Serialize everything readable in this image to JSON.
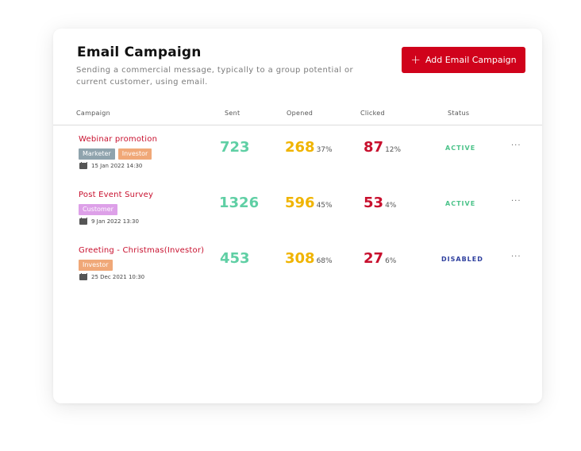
{
  "header": {
    "title": "Email Campaign",
    "subtitle": "Sending a commercial message, typically to a group potential or current customer, using email.",
    "add_button_label": "Add Email Campaign",
    "add_button_icon": "plus-icon"
  },
  "columns": [
    "Campaign",
    "Sent",
    "Opened",
    "Clicked",
    "Status"
  ],
  "colors": {
    "accent": "#d0021b",
    "sent": "#5fcfa4",
    "opened": "#f0b400",
    "clicked": "#c8102e",
    "active": "#4cc38a",
    "disabled": "#2e3f9e",
    "tag_marketer": "#8fa3ad",
    "tag_investor": "#f0a878",
    "tag_customer": "#dda0e8"
  },
  "rows": [
    {
      "name": "Webinar promotion",
      "tags": [
        {
          "label": "Marketer",
          "color": "#8fa3ad"
        },
        {
          "label": "Investor",
          "color": "#f0a878"
        }
      ],
      "date": "15 Jan 2022 14:30",
      "sent": "723",
      "opened": "268",
      "opened_pct": "37%",
      "clicked": "87",
      "clicked_pct": "12%",
      "status": "ACTIVE",
      "status_color": "#4cc38a",
      "more": "···"
    },
    {
      "name": "Post Event Survey",
      "tags": [
        {
          "label": "Customer",
          "color": "#dda0e8"
        }
      ],
      "date": "9 Jan 2022 13:30",
      "sent": "1326",
      "opened": "596",
      "opened_pct": "45%",
      "clicked": "53",
      "clicked_pct": "4%",
      "status": "ACTIVE",
      "status_color": "#4cc38a",
      "more": "···"
    },
    {
      "name": "Greeting - Christmas(Investor)",
      "tags": [
        {
          "label": "Investor",
          "color": "#f0a878"
        }
      ],
      "date": "25 Dec 2021 10:30",
      "sent": "453",
      "opened": "308",
      "opened_pct": "68%",
      "clicked": "27",
      "clicked_pct": "6%",
      "status": "DISABLED",
      "status_color": "#2e3f9e",
      "more": "···"
    }
  ]
}
